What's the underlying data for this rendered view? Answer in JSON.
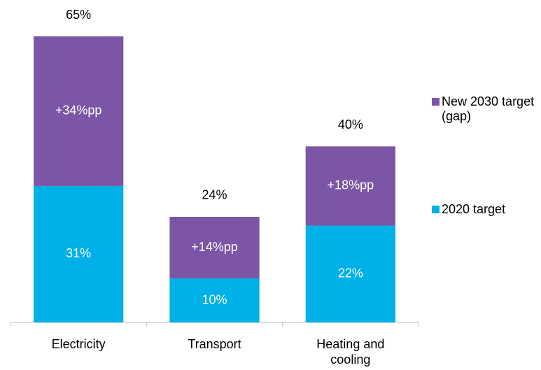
{
  "chart_data": {
    "type": "stacked_bar",
    "categories": [
      "Electricity",
      "Transport",
      "Heating and cooling"
    ],
    "series": [
      {
        "name": "2020 target",
        "color": "#00b0e8",
        "values": [
          31,
          10,
          22
        ],
        "value_labels": [
          "31%",
          "10%",
          "22%"
        ]
      },
      {
        "name": "New 2030 target (gap)",
        "color": "#7b56a6",
        "values": [
          34,
          14,
          18
        ],
        "value_labels": [
          "+34%pp",
          "+14%pp",
          "+18%pp"
        ]
      }
    ],
    "totals": {
      "values": [
        65,
        24,
        40
      ],
      "value_labels": [
        "65%",
        "24%",
        "40%"
      ]
    },
    "ylim": [
      0,
      65
    ],
    "legend": "right"
  }
}
